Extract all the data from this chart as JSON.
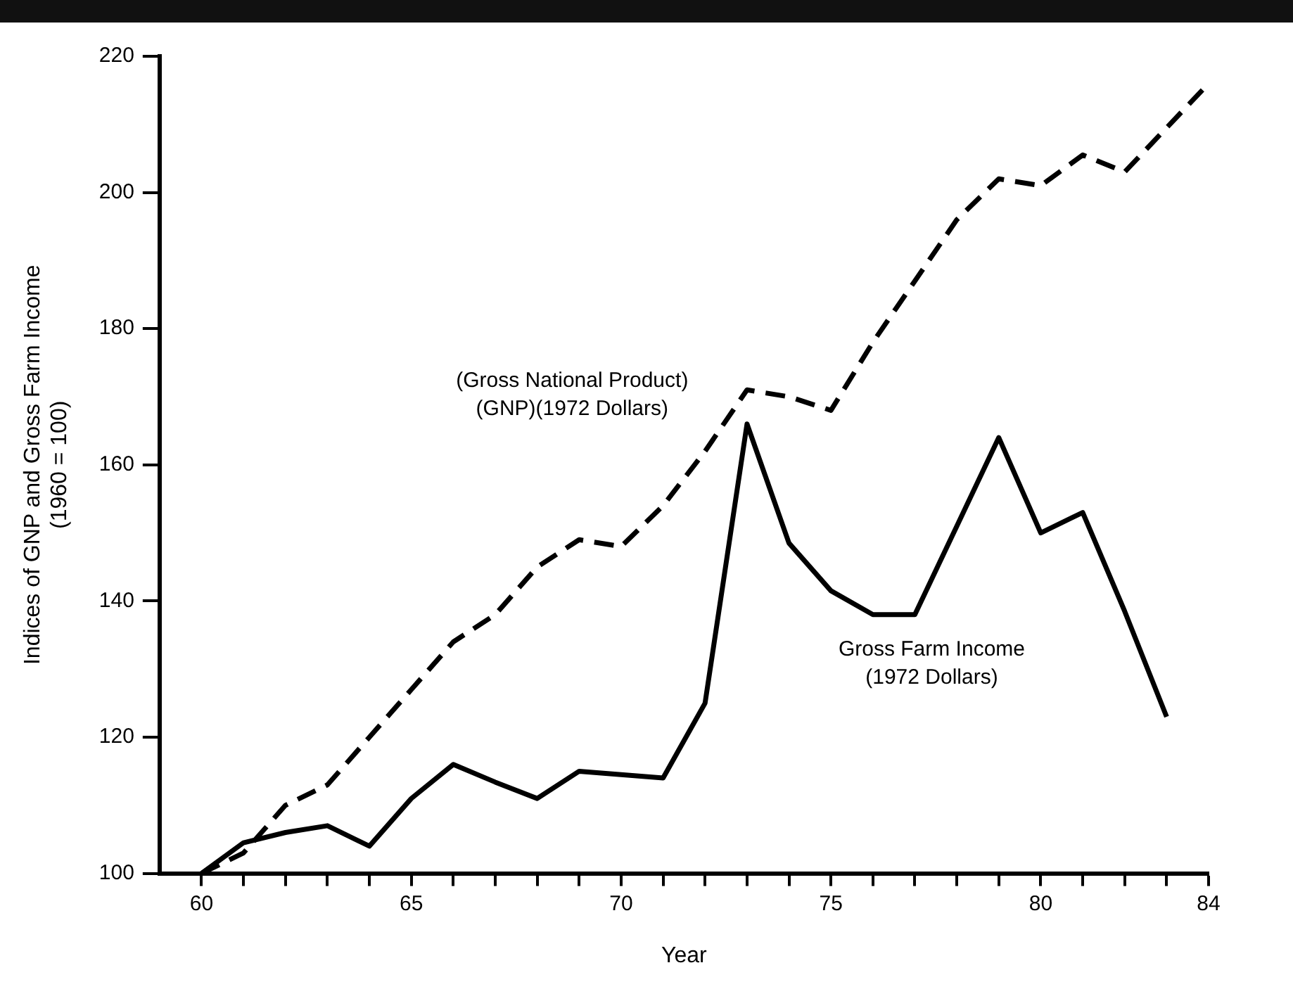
{
  "chart_data": {
    "type": "line",
    "xlabel": "Year",
    "ylabel": "Indices of GNP and Gross Farm Income\n(1960 = 100)",
    "xlim": [
      59,
      84
    ],
    "ylim": [
      100,
      220
    ],
    "xticks": [
      60,
      {
        "value": 61,
        "label": null
      },
      {
        "value": 62,
        "label": null
      },
      {
        "value": 63,
        "label": null
      },
      {
        "value": 64,
        "label": null
      },
      65,
      {
        "value": 66,
        "label": null
      },
      {
        "value": 67,
        "label": null
      },
      {
        "value": 68,
        "label": null
      },
      {
        "value": 69,
        "label": null
      },
      70,
      {
        "value": 71,
        "label": null
      },
      {
        "value": 72,
        "label": null
      },
      {
        "value": 73,
        "label": null
      },
      {
        "value": 74,
        "label": null
      },
      75,
      {
        "value": 76,
        "label": null
      },
      {
        "value": 77,
        "label": null
      },
      {
        "value": 78,
        "label": null
      },
      {
        "value": 79,
        "label": null
      },
      80,
      {
        "value": 81,
        "label": null
      },
      {
        "value": 82,
        "label": null
      },
      {
        "value": 83,
        "label": null
      },
      84
    ],
    "yticks": [
      100,
      120,
      140,
      160,
      180,
      200,
      220
    ],
    "grid": false,
    "legend": false,
    "marker": "none",
    "series": [
      {
        "name": "(Gross National Product)\n(GNP)(1972 Dollars)",
        "color": "#000000",
        "line_style": "dashed",
        "x": [
          60,
          61,
          62,
          63,
          64,
          65,
          66,
          67,
          68,
          69,
          70,
          71,
          72,
          73,
          74,
          75,
          76,
          77,
          78,
          79,
          80,
          81,
          82,
          83,
          84
        ],
        "values": [
          100,
          103,
          110,
          113,
          120,
          127,
          134,
          138,
          145,
          149,
          148,
          154,
          162,
          171,
          170,
          168,
          178,
          187,
          196,
          202,
          201,
          205.5,
          203,
          209.5,
          216
        ]
      },
      {
        "name": "Gross Farm Income\n(1972 Dollars)",
        "color": "#000000",
        "line_style": "solid",
        "x": [
          60,
          61,
          62,
          63,
          64,
          65,
          66,
          67,
          68,
          69,
          70,
          71,
          72,
          73,
          74,
          75,
          76,
          77,
          78,
          79,
          80,
          81,
          82,
          83
        ],
        "values": [
          100,
          104.5,
          106,
          107,
          104,
          111,
          116,
          113.4,
          111,
          115,
          114.5,
          114,
          125,
          166,
          148.5,
          141.5,
          138,
          138,
          151,
          164,
          150,
          153,
          138.5,
          123
        ]
      }
    ]
  }
}
